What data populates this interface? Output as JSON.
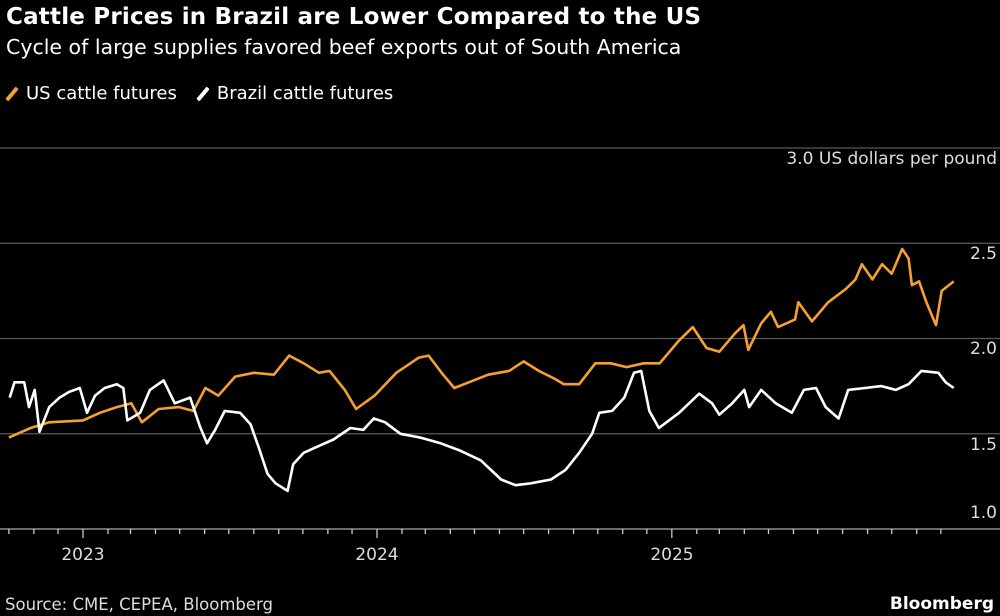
{
  "title": "Cattle Prices in Brazil are Lower Compared to the US",
  "subtitle": "Cycle of large supplies favored beef exports out of South America",
  "source": "Source: CME, CEPEA, Bloomberg",
  "brand": "Bloomberg",
  "chart_data": {
    "type": "line",
    "title": "Cattle Prices in Brazil are Lower Compared to the US",
    "subtitle": "Cycle of large supplies favored beef exports out of South America",
    "ylabel": "US dollars per pound",
    "ylim": [
      1.0,
      3.0
    ],
    "yticks": [
      "1.0",
      "1.5",
      "2.0",
      "2.5",
      "3.0"
    ],
    "xlim": [
      "2022-10-01",
      "2025-12-20"
    ],
    "xticks": [
      "2023",
      "2024",
      "2025"
    ],
    "grid": true,
    "legend_position": "top-left",
    "series": [
      {
        "name": "US cattle futures",
        "color": "#f5a030",
        "points": [
          [
            "2022-10-01",
            1.48
          ],
          [
            "2022-10-28",
            1.53
          ],
          [
            "2022-11-20",
            1.56
          ],
          [
            "2023-01-01",
            1.57
          ],
          [
            "2023-01-22",
            1.61
          ],
          [
            "2023-02-12",
            1.64
          ],
          [
            "2023-03-02",
            1.66
          ],
          [
            "2023-03-15",
            1.56
          ],
          [
            "2023-04-05",
            1.63
          ],
          [
            "2023-04-30",
            1.64
          ],
          [
            "2023-05-18",
            1.62
          ],
          [
            "2023-06-02",
            1.74
          ],
          [
            "2023-06-18",
            1.7
          ],
          [
            "2023-07-09",
            1.8
          ],
          [
            "2023-08-01",
            1.82
          ],
          [
            "2023-08-26",
            1.81
          ],
          [
            "2023-09-14",
            1.91
          ],
          [
            "2023-10-02",
            1.87
          ],
          [
            "2023-10-21",
            1.82
          ],
          [
            "2023-11-03",
            1.83
          ],
          [
            "2023-11-22",
            1.73
          ],
          [
            "2023-12-06",
            1.63
          ],
          [
            "2023-12-29",
            1.7
          ],
          [
            "2024-01-25",
            1.82
          ],
          [
            "2024-02-22",
            1.9
          ],
          [
            "2024-03-05",
            1.91
          ],
          [
            "2024-03-23",
            1.81
          ],
          [
            "2024-04-06",
            1.74
          ],
          [
            "2024-04-24",
            1.77
          ],
          [
            "2024-05-18",
            1.81
          ],
          [
            "2024-06-13",
            1.83
          ],
          [
            "2024-07-01",
            1.88
          ],
          [
            "2024-07-20",
            1.83
          ],
          [
            "2024-08-08",
            1.79
          ],
          [
            "2024-08-20",
            1.76
          ],
          [
            "2024-09-08",
            1.76
          ],
          [
            "2024-09-28",
            1.87
          ],
          [
            "2024-10-17",
            1.87
          ],
          [
            "2024-11-06",
            1.85
          ],
          [
            "2024-11-27",
            1.87
          ],
          [
            "2024-12-17",
            1.87
          ],
          [
            "2025-01-10",
            1.99
          ],
          [
            "2025-01-27",
            2.06
          ],
          [
            "2025-02-13",
            1.95
          ],
          [
            "2025-03-01",
            1.93
          ],
          [
            "2025-03-21",
            2.03
          ],
          [
            "2025-03-31",
            2.07
          ],
          [
            "2025-04-06",
            1.94
          ],
          [
            "2025-04-22",
            2.08
          ],
          [
            "2025-05-04",
            2.14
          ],
          [
            "2025-05-13",
            2.06
          ],
          [
            "2025-06-03",
            2.1
          ],
          [
            "2025-06-07",
            2.19
          ],
          [
            "2025-06-24",
            2.09
          ],
          [
            "2025-07-14",
            2.19
          ],
          [
            "2025-08-05",
            2.26
          ],
          [
            "2025-08-17",
            2.31
          ],
          [
            "2025-08-25",
            2.39
          ],
          [
            "2025-09-07",
            2.31
          ],
          [
            "2025-09-19",
            2.39
          ],
          [
            "2025-10-01",
            2.34
          ],
          [
            "2025-10-14",
            2.47
          ],
          [
            "2025-10-22",
            2.42
          ],
          [
            "2025-10-26",
            2.28
          ],
          [
            "2025-11-04",
            2.3
          ],
          [
            "2025-11-13",
            2.19
          ],
          [
            "2025-11-25",
            2.07
          ],
          [
            "2025-12-02",
            2.25
          ],
          [
            "2025-12-17",
            2.3
          ]
        ]
      },
      {
        "name": "Brazil cattle futures",
        "color": "#ffffff",
        "points": [
          [
            "2022-10-02",
            1.69
          ],
          [
            "2022-10-08",
            1.77
          ],
          [
            "2022-10-20",
            1.77
          ],
          [
            "2022-10-26",
            1.64
          ],
          [
            "2022-11-02",
            1.73
          ],
          [
            "2022-11-08",
            1.51
          ],
          [
            "2022-11-20",
            1.64
          ],
          [
            "2022-12-03",
            1.69
          ],
          [
            "2022-12-15",
            1.72
          ],
          [
            "2022-12-28",
            1.74
          ],
          [
            "2023-01-06",
            1.61
          ],
          [
            "2023-01-16",
            1.7
          ],
          [
            "2023-01-28",
            1.74
          ],
          [
            "2023-02-12",
            1.76
          ],
          [
            "2023-02-20",
            1.74
          ],
          [
            "2023-02-25",
            1.57
          ],
          [
            "2023-03-13",
            1.61
          ],
          [
            "2023-03-25",
            1.73
          ],
          [
            "2023-04-11",
            1.78
          ],
          [
            "2023-04-25",
            1.66
          ],
          [
            "2023-05-14",
            1.69
          ],
          [
            "2023-05-26",
            1.54
          ],
          [
            "2023-06-04",
            1.45
          ],
          [
            "2023-06-14",
            1.52
          ],
          [
            "2023-06-26",
            1.62
          ],
          [
            "2023-07-15",
            1.61
          ],
          [
            "2023-07-28",
            1.55
          ],
          [
            "2023-08-07",
            1.43
          ],
          [
            "2023-08-18",
            1.29
          ],
          [
            "2023-08-28",
            1.24
          ],
          [
            "2023-09-12",
            1.2
          ],
          [
            "2023-09-19",
            1.34
          ],
          [
            "2023-10-02",
            1.4
          ],
          [
            "2023-10-23",
            1.44
          ],
          [
            "2023-11-08",
            1.47
          ],
          [
            "2023-11-29",
            1.53
          ],
          [
            "2023-12-15",
            1.52
          ],
          [
            "2023-12-28",
            1.58
          ],
          [
            "2024-01-11",
            1.56
          ],
          [
            "2024-01-30",
            1.5
          ],
          [
            "2024-02-24",
            1.48
          ],
          [
            "2024-03-20",
            1.45
          ],
          [
            "2024-04-14",
            1.41
          ],
          [
            "2024-05-09",
            1.36
          ],
          [
            "2024-06-03",
            1.26
          ],
          [
            "2024-06-21",
            1.23
          ],
          [
            "2024-07-10",
            1.24
          ],
          [
            "2024-08-04",
            1.26
          ],
          [
            "2024-08-22",
            1.31
          ],
          [
            "2024-09-08",
            1.4
          ],
          [
            "2024-09-24",
            1.5
          ],
          [
            "2024-10-03",
            1.61
          ],
          [
            "2024-10-19",
            1.62
          ],
          [
            "2024-11-03",
            1.69
          ],
          [
            "2024-11-15",
            1.82
          ],
          [
            "2024-11-24",
            1.83
          ],
          [
            "2024-12-04",
            1.62
          ],
          [
            "2024-12-16",
            1.53
          ],
          [
            "2025-01-10",
            1.61
          ],
          [
            "2025-02-04",
            1.71
          ],
          [
            "2025-02-20",
            1.66
          ],
          [
            "2025-03-01",
            1.6
          ],
          [
            "2025-03-17",
            1.66
          ],
          [
            "2025-04-01",
            1.73
          ],
          [
            "2025-04-07",
            1.64
          ],
          [
            "2025-04-22",
            1.73
          ],
          [
            "2025-05-10",
            1.66
          ],
          [
            "2025-05-30",
            1.61
          ],
          [
            "2025-06-14",
            1.73
          ],
          [
            "2025-06-29",
            1.74
          ],
          [
            "2025-07-11",
            1.64
          ],
          [
            "2025-07-27",
            1.58
          ],
          [
            "2025-08-08",
            1.73
          ],
          [
            "2025-08-29",
            1.74
          ],
          [
            "2025-09-18",
            1.75
          ],
          [
            "2025-10-06",
            1.73
          ],
          [
            "2025-10-22",
            1.76
          ],
          [
            "2025-11-07",
            1.83
          ],
          [
            "2025-11-28",
            1.82
          ],
          [
            "2025-12-07",
            1.77
          ],
          [
            "2025-12-17",
            1.74
          ]
        ]
      }
    ]
  }
}
